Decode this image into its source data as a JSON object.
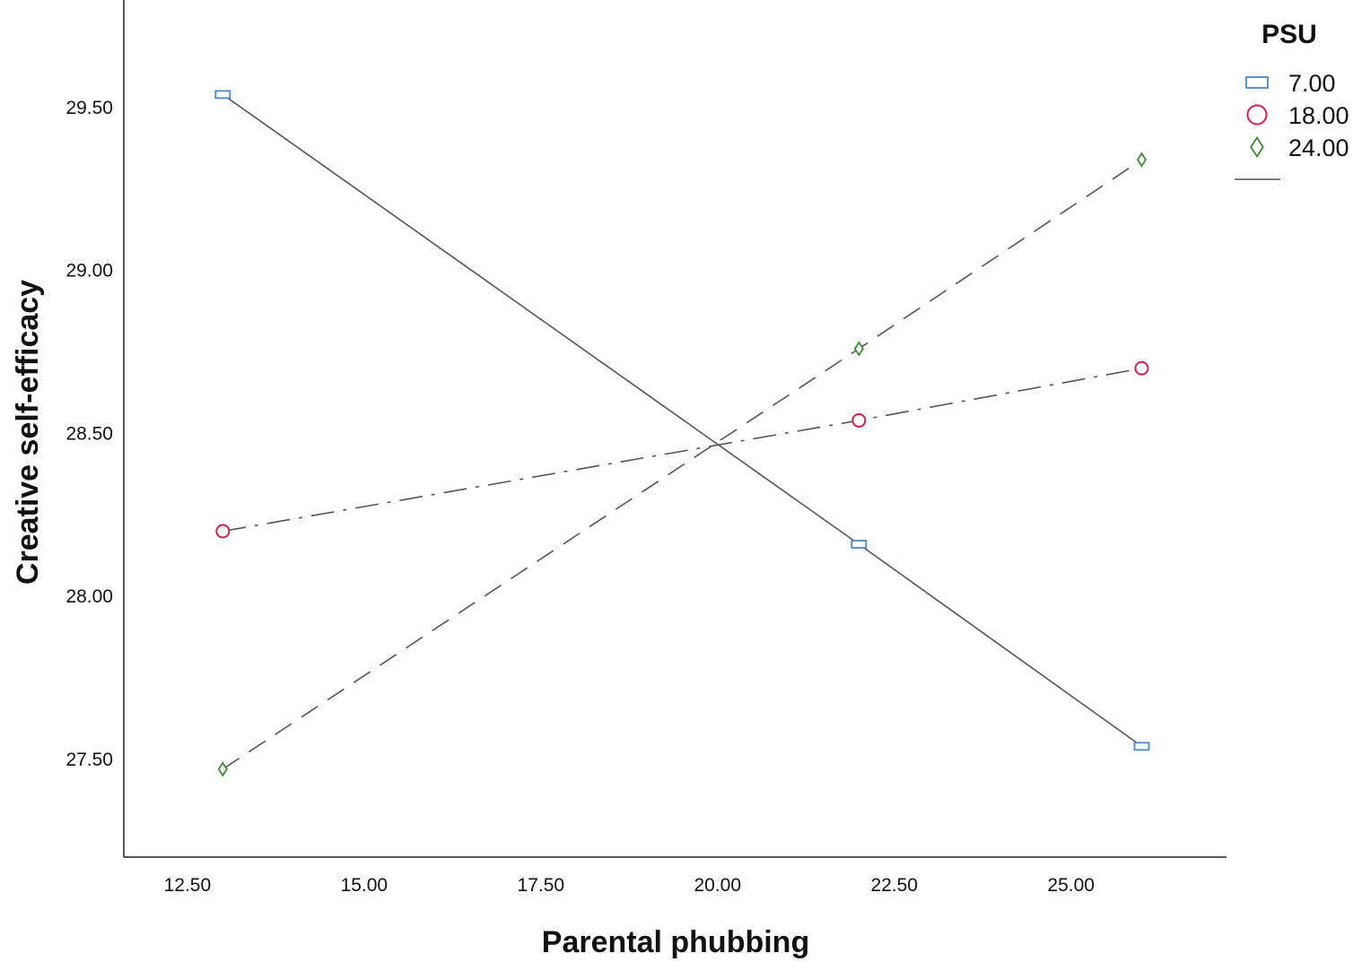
{
  "chart_data": {
    "type": "line",
    "xlabel": "Parental phubbing",
    "ylabel": "Creative self-efficacy",
    "x_ticks": [
      "12.50",
      "15.00",
      "17.50",
      "20.00",
      "22.50",
      "25.00"
    ],
    "y_ticks": [
      "27.50",
      "28.00",
      "28.50",
      "29.00",
      "29.50"
    ],
    "x_tick_values": [
      12.5,
      15.0,
      17.5,
      20.0,
      22.5,
      25.0
    ],
    "y_tick_values": [
      27.5,
      28.0,
      28.5,
      29.0,
      29.5
    ],
    "xlim": [
      11.6,
      27.2
    ],
    "ylim": [
      27.2,
      29.83
    ],
    "grid": false,
    "legend": {
      "title": "PSU",
      "position": "right"
    },
    "series": [
      {
        "name": "7.00",
        "marker": "square",
        "marker_color": "#4a86c6",
        "line_style": "solid",
        "points": [
          [
            13.0,
            29.54
          ],
          [
            22.0,
            28.16
          ],
          [
            26.0,
            27.54
          ]
        ]
      },
      {
        "name": "18.00",
        "marker": "circle",
        "marker_color": "#d4204a",
        "line_style": "dash-dot",
        "points": [
          [
            13.0,
            28.2
          ],
          [
            22.0,
            28.54
          ],
          [
            26.0,
            28.7
          ]
        ]
      },
      {
        "name": "24.00",
        "marker": "diamond",
        "marker_color": "#3a8a2e",
        "line_style": "dashed",
        "points": [
          [
            13.0,
            27.47
          ],
          [
            22.0,
            28.76
          ],
          [
            26.0,
            29.34
          ]
        ]
      }
    ],
    "line_color": "#555555"
  }
}
